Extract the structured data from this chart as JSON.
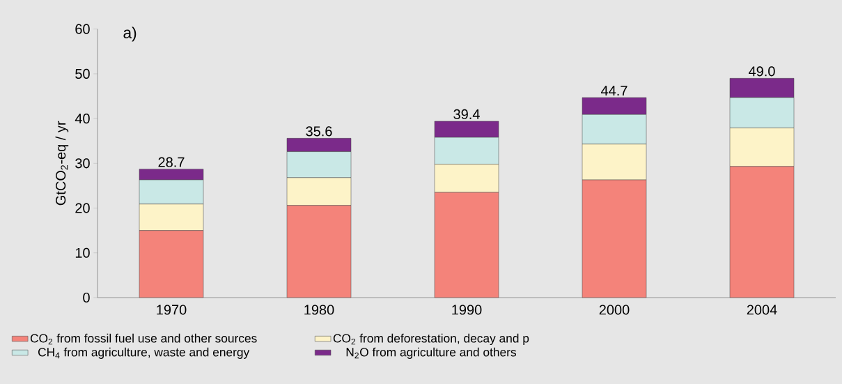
{
  "chart_data": {
    "type": "bar",
    "stacked": true,
    "title": "a)",
    "ylabel": "GtCO$_{2}$-eq / yr",
    "categories": [
      "1970",
      "1980",
      "1990",
      "2000",
      "2004"
    ],
    "series": [
      {
        "name": "CO$_{2}$ from fossil fuel use and other sources",
        "color": "#f4837a",
        "values": [
          15.0,
          20.6,
          23.5,
          26.3,
          29.3
        ]
      },
      {
        "name": "CO$_{2}$ from deforestation, decay and p",
        "color": "#fdf3c8",
        "values": [
          5.9,
          6.2,
          6.3,
          8.0,
          8.6
        ]
      },
      {
        "name": "CH$_{4}$ from agriculture, waste and energy",
        "color": "#c9e8e6",
        "values": [
          5.4,
          5.8,
          6.0,
          6.6,
          6.8
        ]
      },
      {
        "name": "N$_{2}$O from agriculture and others",
        "color": "#7b2a8a",
        "values": [
          2.4,
          3.0,
          3.6,
          3.8,
          4.3
        ]
      }
    ],
    "totals": [
      "28.7",
      "35.6",
      "39.4",
      "44.7",
      "49.0"
    ],
    "ylim": [
      0,
      60
    ],
    "yticks": [
      0,
      10,
      20,
      30,
      40,
      50,
      60
    ],
    "legend": "bottom",
    "grid": false
  }
}
